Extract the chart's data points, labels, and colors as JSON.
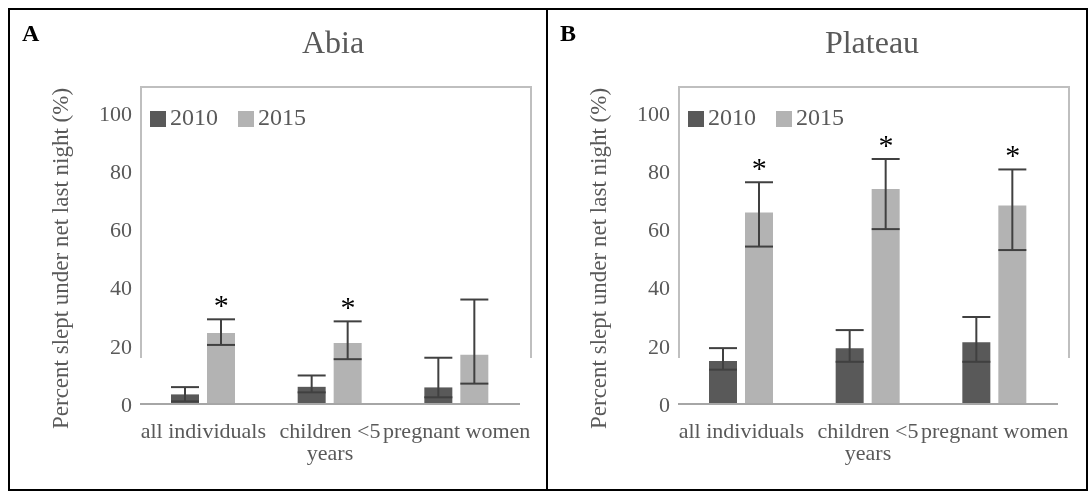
{
  "chart_data": [
    {
      "type": "bar",
      "title": "Abia",
      "ylabel": "Percent slept under net last night (%)",
      "categories": [
        "all individuals",
        "children <5 years",
        "pregnant women"
      ],
      "series": [
        {
          "name": "2010",
          "color": "#595959",
          "values": [
            3.3,
            5.9,
            5.7
          ],
          "errors": [
            [
              0.9,
              5.8
            ],
            [
              4,
              9.8
            ],
            [
              2.3,
              15.9
            ]
          ]
        },
        {
          "name": "2015",
          "color": "#b3b3b3",
          "values": [
            24.4,
            21.0,
            16.9
          ],
          "errors": [
            [
              20.3,
              29.1
            ],
            [
              15.4,
              28.4
            ],
            [
              7.0,
              35.9
            ]
          ]
        }
      ],
      "ylim": [
        0,
        100
      ],
      "yticks": [
        0,
        20,
        40,
        60,
        80,
        100
      ],
      "grid": false,
      "legend": "top left",
      "annotations": [
        "A",
        {
          "text": "*",
          "x": "all individuals",
          "y": 29.1
        },
        {
          "text": "*",
          "x": "children <5 years",
          "y": 28.4
        }
      ]
    },
    {
      "type": "bar",
      "title": "Plateau",
      "ylabel": "Percent slept under net last night (%)",
      "categories": [
        "all individuals",
        "children <5 years",
        "pregnant women"
      ],
      "series": [
        {
          "name": "2010",
          "color": "#595959",
          "values": [
            14.8,
            19.2,
            21.2
          ],
          "errors": [
            [
              11.8,
              19.2
            ],
            [
              14.5,
              25.4
            ],
            [
              14.5,
              29.9
            ]
          ]
        },
        {
          "name": "2015",
          "color": "#b3b3b3",
          "values": [
            65.8,
            73.9,
            68.2
          ],
          "errors": [
            [
              54.1,
              76.2
            ],
            [
              60.1,
              84.2
            ],
            [
              52.9,
              80.6
            ]
          ]
        }
      ],
      "ylim": [
        0,
        100
      ],
      "yticks": [
        0,
        20,
        40,
        60,
        80,
        100
      ],
      "grid": false,
      "legend": "top left",
      "annotations": [
        "B",
        {
          "text": "*",
          "x": "all individuals",
          "y": 76.2
        },
        {
          "text": "*",
          "x": "children <5 years",
          "y": 84.2
        },
        {
          "text": "*",
          "x": "pregnant women",
          "y": 80.6
        }
      ]
    }
  ]
}
